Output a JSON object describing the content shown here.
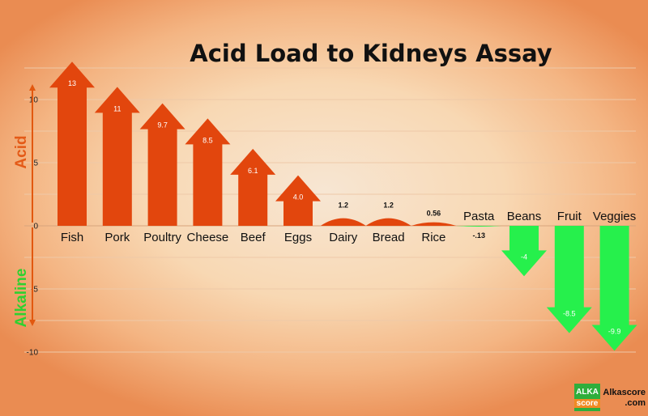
{
  "chart_data": {
    "type": "bar",
    "title": "Acid Load to Kidneys Assay",
    "ylabel_positive": "Acid",
    "ylabel_negative": "Alkaline",
    "categories": [
      "Fish",
      "Pork",
      "Poultry",
      "Cheese",
      "Beef",
      "Eggs",
      "Dairy",
      "Bread",
      "Rice",
      "Pasta",
      "Beans",
      "Fruit",
      "Veggies"
    ],
    "values": [
      13,
      11,
      9.7,
      8.5,
      6.1,
      4.0,
      1.2,
      1.2,
      0.56,
      -0.13,
      -4,
      -8.5,
      -9.9
    ],
    "value_labels": [
      "13",
      "11",
      "9.7",
      "8.5",
      "6.1",
      "4.0",
      "1.2",
      "1.2",
      "0.56",
      "-.13",
      "-4",
      "-8.5",
      "-9.9"
    ],
    "yticks": [
      10,
      5,
      0,
      -5,
      -10
    ],
    "ylim": [
      -10,
      13
    ],
    "grid": true,
    "colors": {
      "acid": "#e2460d",
      "alkaline": "#26f04c",
      "acid_label": "#e45a17",
      "alkaline_label": "#2ed12f"
    }
  },
  "logo": {
    "line1": "ALKA",
    "line2": "score",
    "site_line1": "Alkascore",
    "site_line2": ".com"
  }
}
